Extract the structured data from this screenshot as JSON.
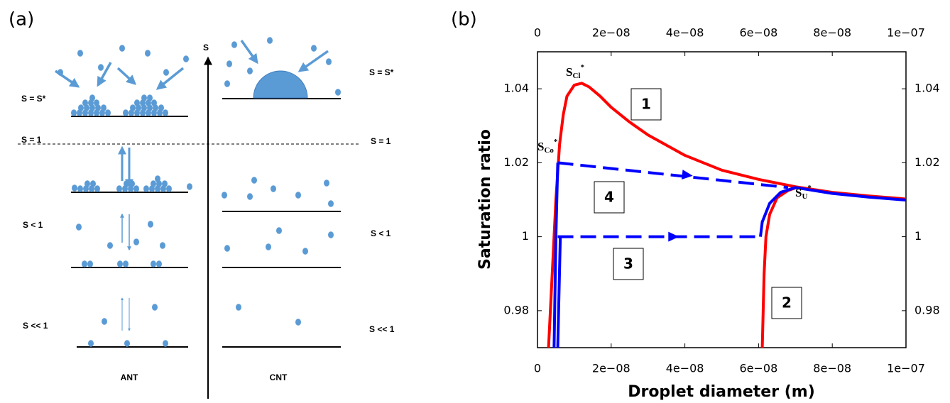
{
  "panel_labels": [
    "(a)",
    "(b)"
  ],
  "diagram": {
    "axis_label": "S",
    "left_levels": [
      "S = S*",
      "S = 1",
      "S < 1",
      "S << 1"
    ],
    "right_levels": [
      "S = S*",
      "S = 1",
      "S < 1",
      "S << 1"
    ],
    "columns": [
      "ANT",
      "CNT"
    ]
  },
  "chart_data": {
    "type": "line",
    "xlabel": "Droplet diameter (m)",
    "ylabel": "Saturation ratio",
    "xlim": [
      0,
      1e-07
    ],
    "ylim": [
      0.97,
      1.05
    ],
    "xticks": [
      0,
      {
        "value": 2e-08,
        "label": "2e−08"
      },
      {
        "value": 4e-08,
        "label": "4e−08"
      },
      {
        "value": 6e-08,
        "label": "6e−08"
      },
      {
        "value": 8e-08,
        "label": "8e−08"
      },
      {
        "value": 1e-07,
        "label": "1e−07"
      }
    ],
    "yticks": [
      0.98,
      1,
      1.02,
      1.04
    ],
    "mirror_axes": true,
    "series": [
      {
        "name": "1",
        "color": "#ff0000",
        "dashed": false,
        "x": [
          3e-09,
          4e-09,
          5e-09,
          6e-09,
          7e-09,
          8e-09,
          1e-08,
          1.2e-08,
          1.4e-08,
          1.7e-08,
          2e-08,
          2.5e-08,
          3e-08,
          4e-08,
          5e-08,
          6e-08,
          7e-08,
          8e-08,
          9e-08,
          1e-07
        ],
        "values": [
          0.97,
          0.99,
          1.01,
          1.025,
          1.033,
          1.038,
          1.041,
          1.0415,
          1.0405,
          1.038,
          1.035,
          1.031,
          1.0275,
          1.022,
          1.018,
          1.0155,
          1.0135,
          1.012,
          1.011,
          1.0102
        ]
      },
      {
        "name": "2",
        "color": "#ff0000",
        "dashed": false,
        "x": [
          6.1e-08,
          6.15e-08,
          6.2e-08,
          6.3e-08,
          6.5e-08,
          6.8e-08,
          7e-08
        ],
        "values": [
          0.97,
          0.99,
          1.0,
          1.006,
          1.0105,
          1.0125,
          1.0132
        ]
      },
      {
        "name": "3",
        "color": "#0000ff",
        "dashed": true,
        "x": [
          5.5e-09,
          6.05e-08
        ],
        "values": [
          1.0,
          1.0
        ]
      },
      {
        "name": "4",
        "color": "#0000ff",
        "dashed": true,
        "x": [
          5.5e-09,
          6.8e-08
        ],
        "values": [
          1.02,
          1.0133
        ]
      },
      {
        "color": "#0000ff",
        "dashed": false,
        "x": [
          4.5e-09,
          5e-09,
          5.5e-09,
          null,
          5.5e-09,
          6.2e-09,
          null,
          6.05e-08,
          6.1e-08,
          6.3e-08,
          6.6e-08,
          7e-08,
          8e-08,
          9e-08,
          1e-07
        ],
        "values": [
          0.97,
          1.0,
          1.02,
          null,
          0.97,
          1.0,
          null,
          1.0,
          1.004,
          1.009,
          1.012,
          1.0133,
          1.0117,
          1.0107,
          1.0099
        ]
      }
    ],
    "annotations": [
      {
        "text": "S",
        "sub": "Cl",
        "sup": "*"
      },
      {
        "text": "S",
        "sub": "Co",
        "sup": "*"
      },
      {
        "text": "S",
        "sub": "U",
        "sup": "*"
      }
    ]
  }
}
